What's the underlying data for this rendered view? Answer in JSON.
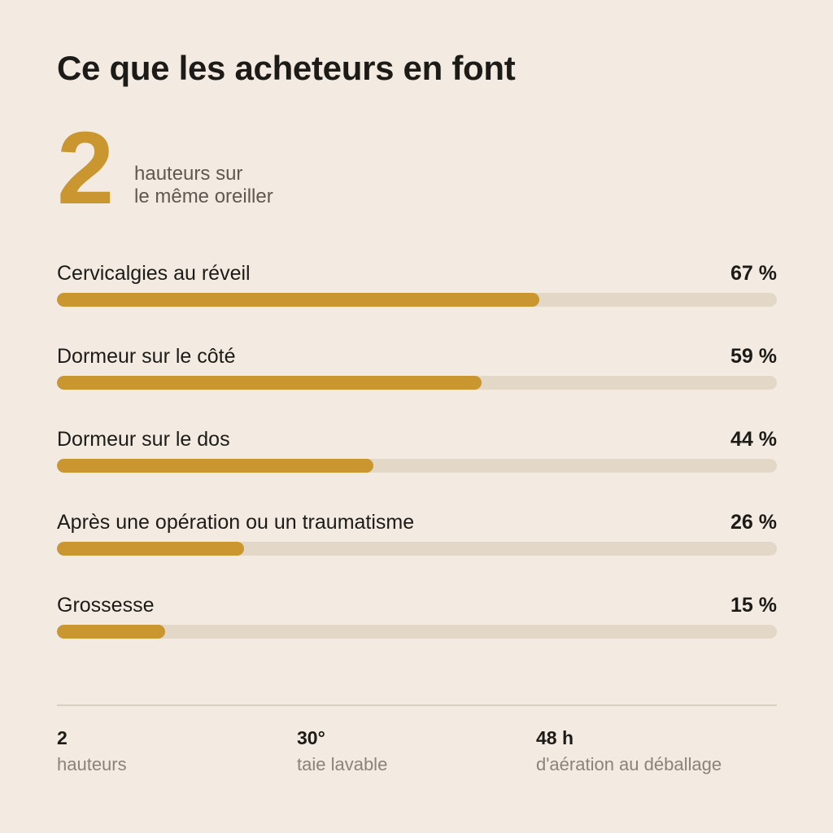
{
  "title": "Ce que les acheteurs en font",
  "hero": {
    "number": "2",
    "caption_line1": "hauteurs sur",
    "caption_line2": "le même oreiller"
  },
  "colors": {
    "accent": "#c9962f",
    "track": "#e3d8c8",
    "background": "#f3ebe1",
    "text": "#1d1b18",
    "muted": "#8a837a"
  },
  "chart_data": {
    "type": "bar",
    "orientation": "horizontal",
    "unit": "%",
    "xlim": [
      0,
      100
    ],
    "categories": [
      "Cervicalgies au réveil",
      "Dormeur sur le côté",
      "Dormeur sur le dos",
      "Après une opération ou un traumatisme",
      "Grossesse"
    ],
    "values": [
      67,
      59,
      44,
      26,
      15
    ],
    "value_labels": [
      "67 %",
      "59 %",
      "44 %",
      "26 %",
      "15 %"
    ]
  },
  "stats": [
    {
      "value": "2",
      "label": "hauteurs"
    },
    {
      "value": "30°",
      "label": "taie lavable"
    },
    {
      "value": "48 h",
      "label": "d'aération au déballage"
    }
  ]
}
